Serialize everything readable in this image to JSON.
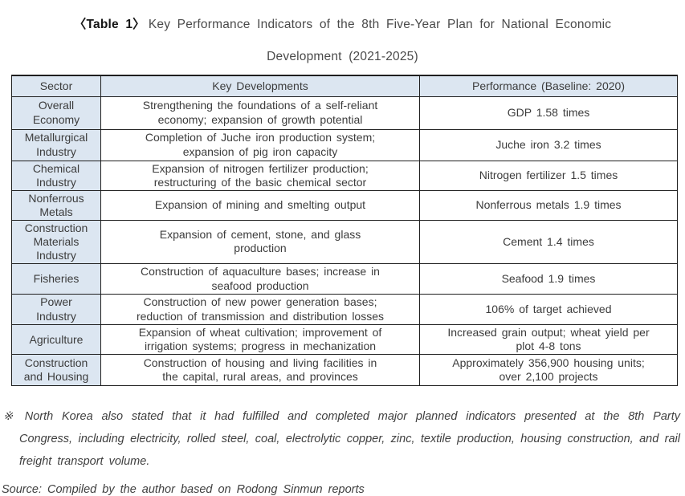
{
  "title": {
    "prefix": "〈Table 1〉",
    "line1": "Key Performance Indicators of the 8th Five-Year Plan for National Economic",
    "line2": "Development (2021-2025)"
  },
  "table": {
    "headers": [
      "Sector",
      "Key Developments",
      "Performance (Baseline: 2020)"
    ],
    "rows": [
      {
        "sector": "Overall\nEconomy",
        "developments": "Strengthening the foundations of a self-reliant\neconomy; expansion of growth potential",
        "performance": "GDP 1.58 times"
      },
      {
        "sector": "Metallurgical\nIndustry",
        "developments": "Completion of Juche iron production system;\nexpansion of pig iron capacity",
        "performance": "Juche iron 3.2 times"
      },
      {
        "sector": "Chemical\nIndustry",
        "developments": "Expansion of nitrogen fertilizer production;\nrestructuring of the basic chemical sector",
        "performance": "Nitrogen fertilizer 1.5 times"
      },
      {
        "sector": "Nonferrous\nMetals",
        "developments": "Expansion of mining and smelting output",
        "performance": "Nonferrous metals 1.9 times"
      },
      {
        "sector": "Construction\nMaterials\nIndustry",
        "developments": "Expansion of cement, stone, and glass\nproduction",
        "performance": "Cement 1.4 times"
      },
      {
        "sector": "Fisheries",
        "developments": "Construction of aquaculture bases; increase in\nseafood production",
        "performance": "Seafood 1.9 times"
      },
      {
        "sector": "Power\nIndustry",
        "developments": "Construction of new power generation bases;\nreduction of transmission and distribution losses",
        "performance": "106% of target achieved"
      },
      {
        "sector": "Agriculture",
        "developments": "Expansion of wheat cultivation; improvement of\nirrigation systems; progress in mechanization",
        "performance": "Increased grain output; wheat yield per\nplot 4-8 tons"
      },
      {
        "sector": "Construction\nand Housing",
        "developments": "Construction of housing and living facilities in\nthe capital, rural areas, and provinces",
        "performance": "Approximately 356,900 housing units;\nover 2,100 projects"
      }
    ]
  },
  "footnote": {
    "marker": "※",
    "text": "North Korea also stated that it had fulfilled and completed major planned indicators presented at the 8th Party Congress, including electricity, rolled steel, coal, electrolytic copper, zinc, textile production, housing construction, and rail freight transport volume."
  },
  "source": "Source: Compiled by the author based on Rodong Sinmun reports",
  "colors": {
    "header_bg": "#dce6f1",
    "border": "#1f1f1f",
    "text": "#3c3c3c"
  }
}
